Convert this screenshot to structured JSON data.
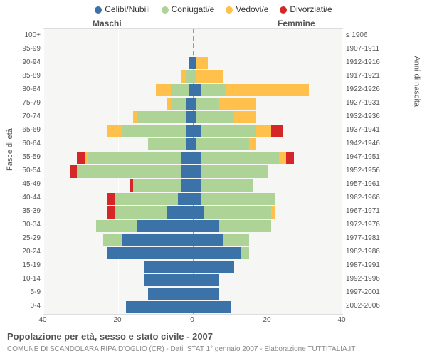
{
  "title": "Popolazione per età, sesso e stato civile - 2007",
  "subtitle": "COMUNE DI SCANDOLARA RIPA D'OGLIO (CR) - Dati ISTAT 1° gennaio 2007 - Elaborazione TUTTITALIA.IT",
  "legend": [
    {
      "label": "Celibi/Nubili",
      "color": "#3b72a8"
    },
    {
      "label": "Coniugati/e",
      "color": "#aed396"
    },
    {
      "label": "Vedovi/e",
      "color": "#ffc04c"
    },
    {
      "label": "Divorziati/e",
      "color": "#d62728"
    }
  ],
  "gender_labels": {
    "male": "Maschi",
    "female": "Femmine"
  },
  "axis_titles": {
    "left": "Fasce di età",
    "right": "Anni di nascita"
  },
  "plot": {
    "background": "#f6f6f4",
    "grid_color": "#ffffff",
    "centerline_color": "#999999"
  },
  "x_axis": {
    "max": 40,
    "ticks": [
      40,
      20,
      0,
      20,
      40
    ]
  },
  "rows": [
    {
      "age": "100+",
      "birth": "≤ 1906",
      "m": {
        "c": 0,
        "k": 0,
        "w": 0,
        "d": 0
      },
      "f": {
        "c": 0,
        "k": 0,
        "w": 0,
        "d": 0
      }
    },
    {
      "age": "95-99",
      "birth": "1907-1911",
      "m": {
        "c": 0,
        "k": 0,
        "w": 0,
        "d": 0
      },
      "f": {
        "c": 0,
        "k": 0,
        "w": 0,
        "d": 0
      }
    },
    {
      "age": "90-94",
      "birth": "1912-1916",
      "m": {
        "c": 1,
        "k": 0,
        "w": 0,
        "d": 0
      },
      "f": {
        "c": 1,
        "k": 0,
        "w": 3,
        "d": 0
      }
    },
    {
      "age": "85-89",
      "birth": "1917-1921",
      "m": {
        "c": 0,
        "k": 2,
        "w": 1,
        "d": 0
      },
      "f": {
        "c": 0,
        "k": 1,
        "w": 7,
        "d": 0
      }
    },
    {
      "age": "80-84",
      "birth": "1922-1926",
      "m": {
        "c": 1,
        "k": 5,
        "w": 4,
        "d": 0
      },
      "f": {
        "c": 2,
        "k": 7,
        "w": 22,
        "d": 0
      }
    },
    {
      "age": "75-79",
      "birth": "1927-1931",
      "m": {
        "c": 2,
        "k": 4,
        "w": 1,
        "d": 0
      },
      "f": {
        "c": 1,
        "k": 6,
        "w": 10,
        "d": 0
      }
    },
    {
      "age": "70-74",
      "birth": "1932-1936",
      "m": {
        "c": 2,
        "k": 13,
        "w": 1,
        "d": 0
      },
      "f": {
        "c": 1,
        "k": 10,
        "w": 6,
        "d": 0
      }
    },
    {
      "age": "65-69",
      "birth": "1937-1941",
      "m": {
        "c": 2,
        "k": 17,
        "w": 4,
        "d": 0
      },
      "f": {
        "c": 2,
        "k": 15,
        "w": 4,
        "d": 3
      }
    },
    {
      "age": "60-64",
      "birth": "1942-1946",
      "m": {
        "c": 2,
        "k": 10,
        "w": 0,
        "d": 0
      },
      "f": {
        "c": 1,
        "k": 14,
        "w": 2,
        "d": 0
      }
    },
    {
      "age": "55-59",
      "birth": "1947-1951",
      "m": {
        "c": 3,
        "k": 25,
        "w": 1,
        "d": 2
      },
      "f": {
        "c": 2,
        "k": 21,
        "w": 2,
        "d": 2
      }
    },
    {
      "age": "50-54",
      "birth": "1952-1956",
      "m": {
        "c": 3,
        "k": 28,
        "w": 0,
        "d": 2
      },
      "f": {
        "c": 2,
        "k": 18,
        "w": 0,
        "d": 0
      }
    },
    {
      "age": "45-49",
      "birth": "1957-1961",
      "m": {
        "c": 3,
        "k": 13,
        "w": 0,
        "d": 1
      },
      "f": {
        "c": 2,
        "k": 14,
        "w": 0,
        "d": 0
      }
    },
    {
      "age": "40-44",
      "birth": "1962-1966",
      "m": {
        "c": 4,
        "k": 17,
        "w": 0,
        "d": 2
      },
      "f": {
        "c": 2,
        "k": 20,
        "w": 0,
        "d": 0
      }
    },
    {
      "age": "35-39",
      "birth": "1967-1971",
      "m": {
        "c": 7,
        "k": 14,
        "w": 0,
        "d": 2
      },
      "f": {
        "c": 3,
        "k": 18,
        "w": 1,
        "d": 0
      }
    },
    {
      "age": "30-34",
      "birth": "1972-1976",
      "m": {
        "c": 15,
        "k": 11,
        "w": 0,
        "d": 0
      },
      "f": {
        "c": 7,
        "k": 14,
        "w": 0,
        "d": 0
      }
    },
    {
      "age": "25-29",
      "birth": "1977-1981",
      "m": {
        "c": 19,
        "k": 5,
        "w": 0,
        "d": 0
      },
      "f": {
        "c": 8,
        "k": 7,
        "w": 0,
        "d": 0
      }
    },
    {
      "age": "20-24",
      "birth": "1982-1986",
      "m": {
        "c": 23,
        "k": 0,
        "w": 0,
        "d": 0
      },
      "f": {
        "c": 13,
        "k": 2,
        "w": 0,
        "d": 0
      }
    },
    {
      "age": "15-19",
      "birth": "1987-1991",
      "m": {
        "c": 13,
        "k": 0,
        "w": 0,
        "d": 0
      },
      "f": {
        "c": 11,
        "k": 0,
        "w": 0,
        "d": 0
      }
    },
    {
      "age": "10-14",
      "birth": "1992-1996",
      "m": {
        "c": 13,
        "k": 0,
        "w": 0,
        "d": 0
      },
      "f": {
        "c": 7,
        "k": 0,
        "w": 0,
        "d": 0
      }
    },
    {
      "age": "5-9",
      "birth": "1997-2001",
      "m": {
        "c": 12,
        "k": 0,
        "w": 0,
        "d": 0
      },
      "f": {
        "c": 7,
        "k": 0,
        "w": 0,
        "d": 0
      }
    },
    {
      "age": "0-4",
      "birth": "2002-2006",
      "m": {
        "c": 18,
        "k": 0,
        "w": 0,
        "d": 0
      },
      "f": {
        "c": 10,
        "k": 0,
        "w": 0,
        "d": 0
      }
    }
  ]
}
